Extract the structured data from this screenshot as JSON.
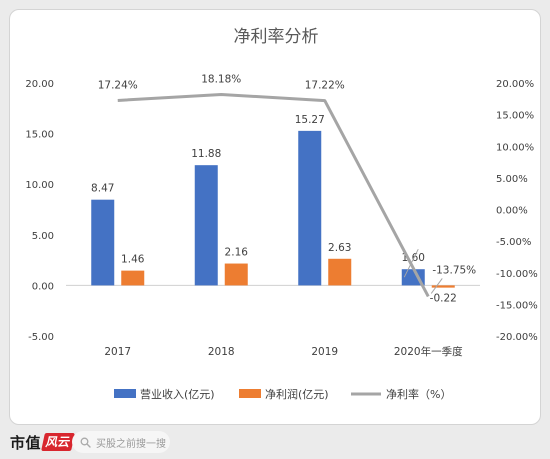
{
  "chart_data": {
    "type": "bar",
    "title": "净利率分析",
    "categories": [
      "2017",
      "2018",
      "2019",
      "2020年一季度"
    ],
    "series": [
      {
        "name": "营业收入(亿元)",
        "type": "bar",
        "axis": "left",
        "color": "#4472C4",
        "values": [
          8.47,
          11.88,
          15.27,
          1.6
        ],
        "labels": [
          "8.47",
          "11.88",
          "15.27",
          "1.60"
        ]
      },
      {
        "name": "净利润(亿元)",
        "type": "bar",
        "axis": "left",
        "color": "#ED7D31",
        "values": [
          1.46,
          2.16,
          2.63,
          -0.22
        ],
        "labels": [
          "1.46",
          "2.16",
          "2.63",
          "-0.22"
        ]
      },
      {
        "name": "净利率（%）",
        "type": "line",
        "axis": "right",
        "color": "#A5A5A5",
        "values": [
          17.24,
          18.18,
          17.22,
          -13.75
        ],
        "labels": [
          "17.24%",
          "18.18%",
          "17.22%",
          "-13.75%"
        ]
      }
    ],
    "y_left": {
      "range": [
        -5,
        20
      ],
      "ticks": [
        "20.00",
        "15.00",
        "10.00",
        "5.00",
        "0.00",
        "-5.00"
      ]
    },
    "y_right": {
      "range": [
        -20,
        20
      ],
      "ticks": [
        "20.00%",
        "15.00%",
        "10.00%",
        "5.00%",
        "0.00%",
        "-5.00%",
        "-10.00%",
        "-15.00%",
        "-20.00%"
      ]
    },
    "grid": false,
    "legend_position": "bottom"
  },
  "footer": {
    "brand": "市值",
    "brand_mark": "风云",
    "search_hint": "买股之前搜一搜"
  }
}
